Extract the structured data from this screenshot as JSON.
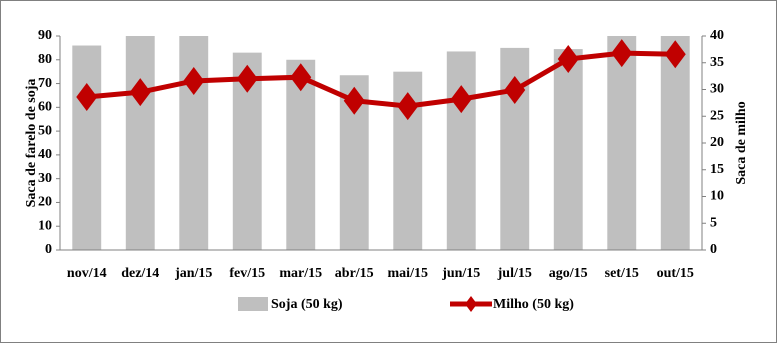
{
  "chart_data": {
    "type": "bar-line",
    "categories": [
      "nov/14",
      "dez/14",
      "jan/15",
      "fev/15",
      "mar/15",
      "abr/15",
      "mai/15",
      "jun/15",
      "jul/15",
      "ago/15",
      "set/15",
      "out/15"
    ],
    "series": [
      {
        "name": "Soja (50 kg)",
        "type": "bar",
        "color": "#bfbfbf",
        "values": [
          86,
          90,
          90,
          83,
          80,
          73.5,
          75,
          83.5,
          85,
          84.5,
          90,
          90
        ]
      },
      {
        "name": "Milho (50 kg)",
        "type": "line",
        "axis": "y2",
        "color": "#c00000",
        "values": [
          28.6,
          29.5,
          31.6,
          32,
          32.3,
          27.9,
          26.9,
          28.2,
          29.9,
          35.7,
          36.8,
          36.6
        ]
      }
    ],
    "ylabel": "Saca de farelo de soja",
    "y2label": "Saca de milho",
    "ylim": [
      0,
      90
    ],
    "yticks": [
      0,
      10,
      20,
      30,
      40,
      50,
      60,
      70,
      80,
      90
    ],
    "y2lim": [
      0,
      40
    ],
    "y2ticks": [
      0,
      5,
      10,
      15,
      20,
      25,
      30,
      35,
      40
    ]
  }
}
